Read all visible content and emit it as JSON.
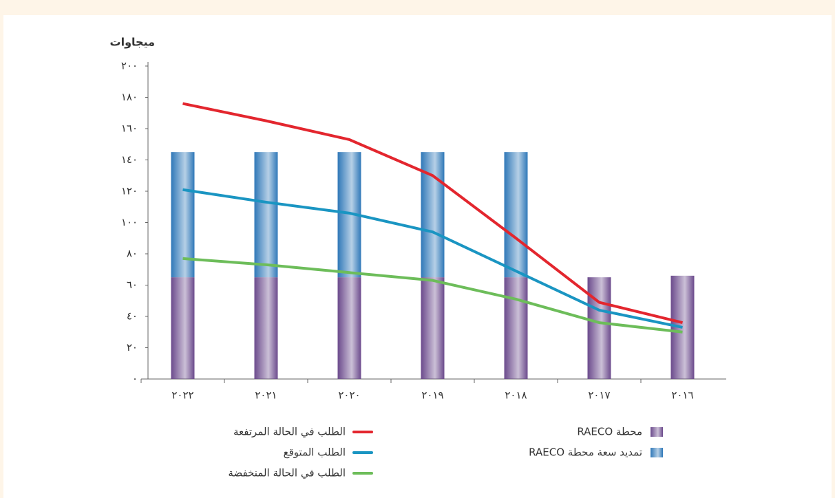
{
  "chart_data": {
    "type": "bar",
    "stacked": true,
    "y_label": "ميجاوات",
    "categories": [
      "٢٠٢٢",
      "٢٠٢١",
      "٢٠٢٠",
      "٢٠١٩",
      "٢٠١٨",
      "٢٠١٧",
      "٢٠١٦"
    ],
    "series": [
      {
        "name": "محطة RAECO",
        "type": "bar",
        "color": "#6b4a8c",
        "values": [
          65,
          65,
          65,
          65,
          65,
          65,
          66
        ]
      },
      {
        "name": "تمديد سعة محطة RAECO",
        "type": "bar",
        "color": "#2f78b8",
        "values": [
          80,
          80,
          80,
          80,
          80,
          0,
          0
        ]
      },
      {
        "name": "الطلب في الحالة المرتفعة",
        "type": "line",
        "color": "#e3262e",
        "values": [
          176,
          165,
          153,
          130,
          90,
          49,
          36
        ]
      },
      {
        "name": "الطلب المتوقع",
        "type": "line",
        "color": "#1a95c2",
        "values": [
          121,
          113,
          106,
          94,
          69,
          44,
          33
        ]
      },
      {
        "name": "الطلب في الحالة المنخفضة",
        "type": "line",
        "color": "#6dbd5a",
        "values": [
          77,
          73,
          68,
          63,
          51,
          36,
          30
        ]
      }
    ],
    "ylim": [
      0,
      200
    ],
    "yticks": [
      {
        "value": 0,
        "label": "٠"
      },
      {
        "value": 20,
        "label": "٢٠"
      },
      {
        "value": 40,
        "label": "٤٠"
      },
      {
        "value": 60,
        "label": "٦٠"
      },
      {
        "value": 80,
        "label": "٨٠"
      },
      {
        "value": 100,
        "label": "١٠٠"
      },
      {
        "value": 120,
        "label": "١٢٠"
      },
      {
        "value": 140,
        "label": "١٤٠"
      },
      {
        "value": 160,
        "label": "١٦٠"
      },
      {
        "value": 180,
        "label": "١٨٠"
      },
      {
        "value": 200,
        "label": "٢٠٠"
      }
    ]
  }
}
